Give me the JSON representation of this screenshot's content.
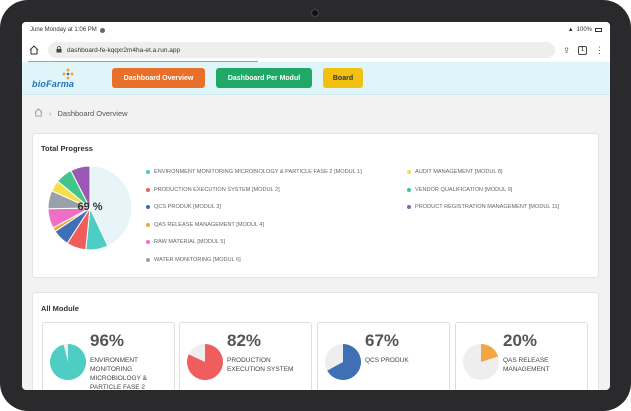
{
  "status_bar": {
    "time": "June Monday at 1:06 PM",
    "battery": "100%"
  },
  "browser": {
    "url": "dashboard-fe-kqqxr2m4ha-et.a.run.app",
    "tabs_count": "1"
  },
  "nav": {
    "logo_text": "bioFarma",
    "buttons": [
      "Dashboard Overview",
      "Dashboard Per Modul",
      "Board"
    ]
  },
  "breadcrumb": {
    "current": "Dashboard Overview"
  },
  "total_progress": {
    "title": "Total Progress",
    "center_value": "69 %",
    "legend_left": [
      {
        "label": "ENVIRONMENT MONITORING MICROBIOLOGY & PARTICLE FASE 2 [MODUL 1]",
        "color": "#4ecdc4"
      },
      {
        "label": "PRODUCTION EXECUTION SYSTEM [MODUL 2]",
        "color": "#ef5d5d"
      },
      {
        "label": "QCS PRODUK [MODUL 3]",
        "color": "#3f6fb5"
      },
      {
        "label": "QAS RELEASE MANAGEMENT [MODUL 4]",
        "color": "#f4a640"
      },
      {
        "label": "RAW MATERIAL [MODUL 5]",
        "color": "#ef6fc4"
      },
      {
        "label": "WATER MONITORING [MODUL 6]",
        "color": "#9aa0a8"
      }
    ],
    "legend_right": [
      {
        "label": "AUDIT MANAGEMENT [MODUL 8]",
        "color": "#f5e04a"
      },
      {
        "label": "VENDOR QUALIFICATION [MODUL 9]",
        "color": "#43c48a"
      },
      {
        "label": "PRODUCT REGISTRATION MANAGEMENT [MODUL 11]",
        "color": "#9b59b6"
      }
    ]
  },
  "all_module": {
    "title": "All Module",
    "cards": [
      {
        "percent_text": "96%",
        "value": 96,
        "name": "ENVIRONMENT MONITORING MICROBIOLOGY & PARTICLE FASE 2",
        "color": "#4ecdc4"
      },
      {
        "percent_text": "82%",
        "value": 82,
        "name": "PRODUCTION EXECUTION SYSTEM",
        "color": "#ef5d5d"
      },
      {
        "percent_text": "67%",
        "value": 67,
        "name": "QCS PRODUK",
        "color": "#3f6fb5"
      },
      {
        "percent_text": "20%",
        "value": 20,
        "name": "QAS RELEASE MANAGEMENT",
        "color": "#f4a640"
      }
    ]
  },
  "chart_data": {
    "type": "pie",
    "center_label": "69 %",
    "slices": [
      {
        "name": "Background",
        "value": 40,
        "color": "#e8f5f8"
      },
      {
        "name": "Cyan",
        "value": 8,
        "color": "#4ecdc4"
      },
      {
        "name": "Red",
        "value": 7,
        "color": "#ef5d5d"
      },
      {
        "name": "Blue",
        "value": 6,
        "color": "#3f6fb5"
      },
      {
        "name": "Orange",
        "value": 1.5,
        "color": "#f4a640"
      },
      {
        "name": "Pink",
        "value": 7,
        "color": "#ef6fc4"
      },
      {
        "name": "Gray",
        "value": 6.5,
        "color": "#9aa0a8"
      },
      {
        "name": "Yellow",
        "value": 4,
        "color": "#f5e04a"
      },
      {
        "name": "Green",
        "value": 6,
        "color": "#43c48a"
      },
      {
        "name": "Purple",
        "value": 7,
        "color": "#9b59b6"
      }
    ]
  }
}
